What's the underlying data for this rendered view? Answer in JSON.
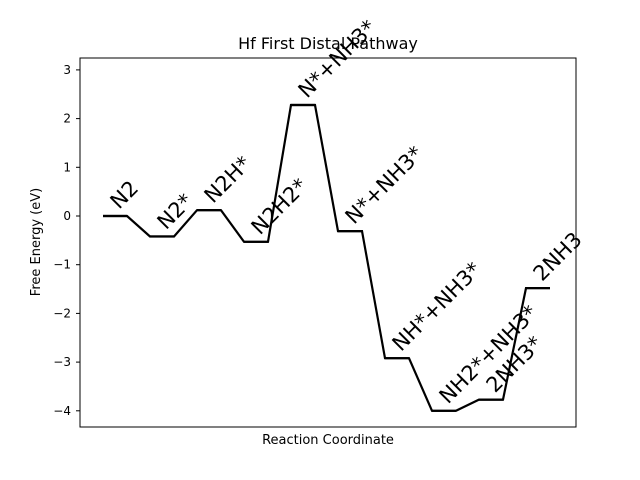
{
  "chart_data": {
    "type": "line",
    "title": "Hf First Distal Pathway",
    "xlabel": "Reaction Coordinate",
    "ylabel": "Free Energy (eV)",
    "ylim": [
      -4.3,
      3.3
    ],
    "yticks": [
      3,
      2,
      1,
      0,
      -1,
      -2,
      -3,
      -4
    ],
    "ytick_labels": [
      "3",
      "2",
      "1",
      "0",
      "−1",
      "−2",
      "−3",
      "−4"
    ],
    "grid": false,
    "steps": [
      {
        "label": "N2",
        "energy": 0.0
      },
      {
        "label": "N2*",
        "energy": -0.42
      },
      {
        "label": "N2H*",
        "energy": 0.12
      },
      {
        "label": "N2H2*",
        "energy": -0.53
      },
      {
        "label": "N*+NH3*",
        "energy": 2.28
      },
      {
        "label": "N*+NH3*",
        "energy": -0.31
      },
      {
        "label": "NH*+NH3*",
        "energy": -2.92
      },
      {
        "label": "NH2*+NH3*",
        "energy": -4.0
      },
      {
        "label": "2NH3*",
        "energy": -3.77
      },
      {
        "label": "2NH3",
        "energy": -1.48
      }
    ]
  }
}
